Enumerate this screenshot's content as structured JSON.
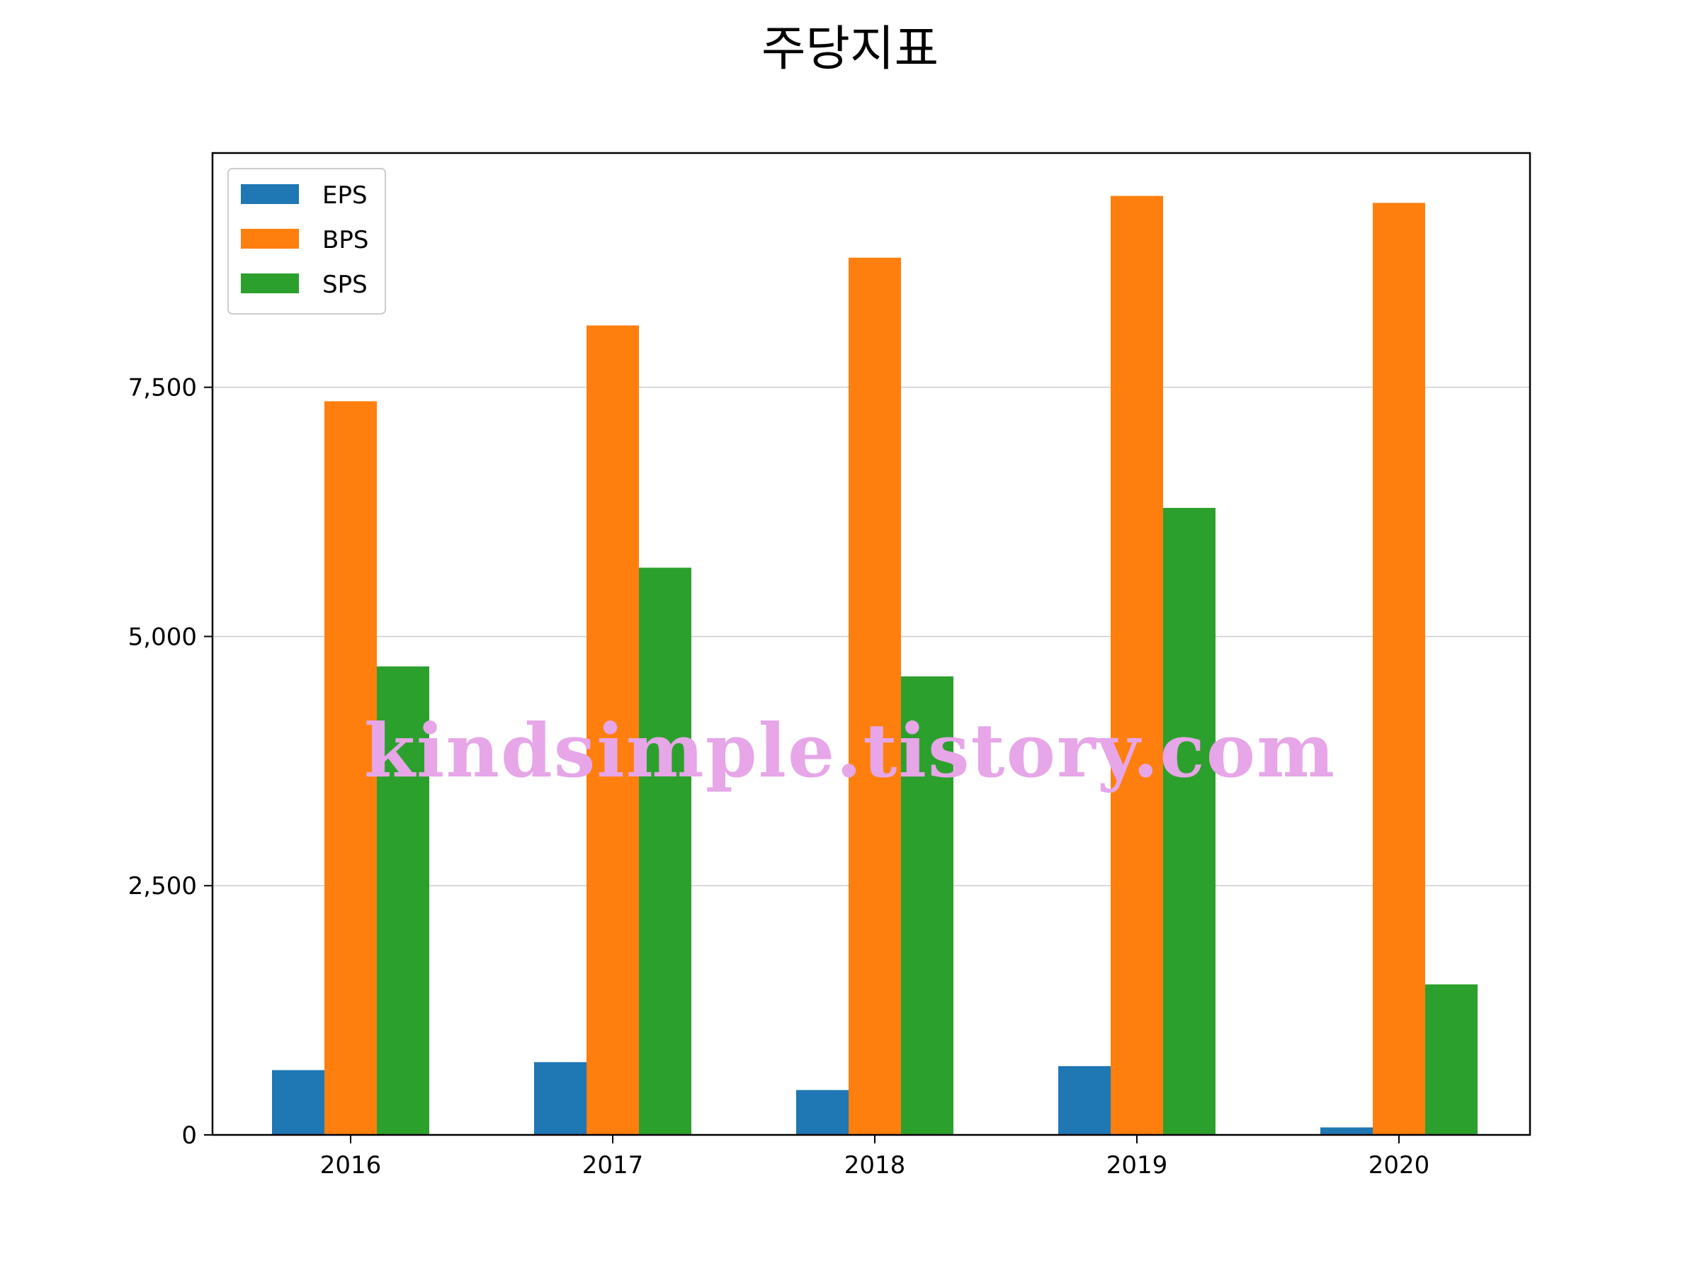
{
  "chart_data": {
    "type": "bar",
    "title": "주당지표",
    "xlabel": "",
    "ylabel": "",
    "categories": [
      "2016",
      "2017",
      "2018",
      "2019",
      "2020"
    ],
    "series": [
      {
        "name": "EPS",
        "color": "#1f77b4",
        "values": [
          650,
          730,
          450,
          690,
          75
        ]
      },
      {
        "name": "BPS",
        "color": "#ff7f0e",
        "values": [
          7360,
          8120,
          8800,
          9420,
          9350
        ]
      },
      {
        "name": "SPS",
        "color": "#2ca02c",
        "values": [
          4700,
          5690,
          4600,
          6290,
          1510
        ]
      }
    ],
    "ylim": [
      0,
      9850
    ],
    "yticks": [
      0,
      2500,
      5000,
      7500
    ],
    "ytick_labels": [
      "0",
      "2,500",
      "5,000",
      "7,500"
    ],
    "grid": {
      "y": true,
      "x": false
    },
    "legend": "top-left"
  },
  "watermark": "kindsimple.tistory.com"
}
